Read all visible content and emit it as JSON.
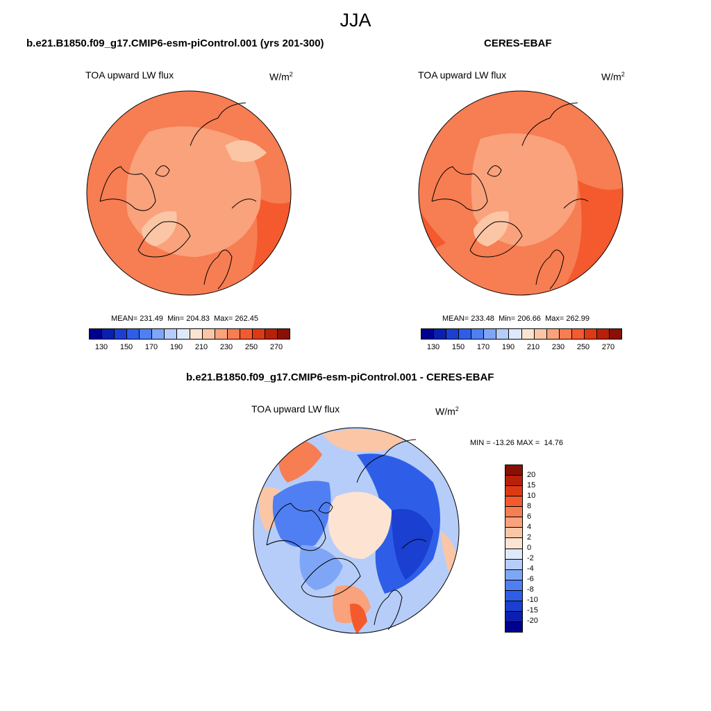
{
  "season": "JJA",
  "panels": {
    "model": {
      "case_title": "b.e21.B1850.f09_g17.CMIP6-esm-piControl.001 (yrs 201-300)",
      "variable": "TOA upward LW flux",
      "units_base": "W/m",
      "units_exp": "2",
      "mean_label": "MEAN=",
      "mean": "231.49",
      "min_label": "Min=",
      "min": "204.83",
      "max_label": "Max=",
      "max": "262.45"
    },
    "obs": {
      "case_title": "CERES-EBAF",
      "variable": "TOA upward LW flux",
      "units_base": "W/m",
      "units_exp": "2",
      "mean_label": "MEAN=",
      "mean": "233.48",
      "min_label": "Min=",
      "min": "206.66",
      "max_label": "Max=",
      "max": "262.99"
    },
    "diff": {
      "case_title": "b.e21.B1850.f09_g17.CMIP6-esm-piControl.001 - CERES-EBAF",
      "variable": "TOA upward LW flux",
      "units_base": "W/m",
      "units_exp": "2",
      "min_label": "MIN =",
      "min": "-13.26",
      "max_label": "MAX =",
      "max": "14.76"
    }
  },
  "colorbar_abs": {
    "colors": [
      "#00008f",
      "#0a1fb0",
      "#1a3fd1",
      "#2e5ee8",
      "#4f7ff2",
      "#7fa6f6",
      "#b6cdf9",
      "#ddeafb",
      "#fde4d2",
      "#fbc6a6",
      "#f9a27c",
      "#f77d52",
      "#f45a2e",
      "#dd3a14",
      "#b8200a",
      "#8a1005"
    ],
    "labels": [
      "130",
      "150",
      "170",
      "190",
      "210",
      "230",
      "250",
      "270"
    ]
  },
  "colorbar_diff": {
    "colors": [
      "#8a1005",
      "#b8200a",
      "#dd3a14",
      "#f45a2e",
      "#f77d52",
      "#f9a27c",
      "#fbc6a6",
      "#fde4d2",
      "#ddeafb",
      "#b6cdf9",
      "#7fa6f6",
      "#4f7ff2",
      "#2e5ee8",
      "#1a3fd1",
      "#0a1fb0",
      "#00008f"
    ],
    "labels": [
      "20",
      "15",
      "10",
      "8",
      "6",
      "4",
      "2",
      "0",
      "-2",
      "-4",
      "-6",
      "-8",
      "-10",
      "-15",
      "-20"
    ]
  }
}
